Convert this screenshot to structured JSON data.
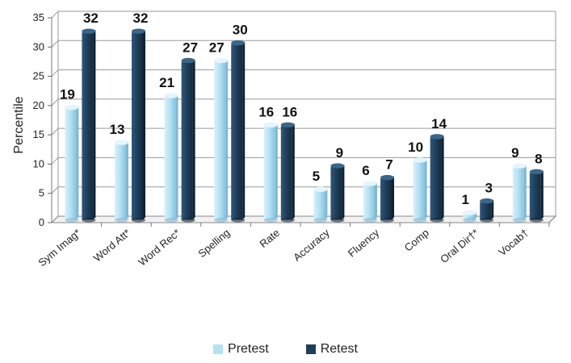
{
  "chart_data": {
    "type": "bar",
    "categories": [
      "Sym Imag*",
      "Word Att*",
      "Word Rec*",
      "Spelling",
      "Rate",
      "Accuracy",
      "Fluency",
      "Comp",
      "Oral Dir†*",
      "Vocab†"
    ],
    "series": [
      {
        "name": "Pretest",
        "values": [
          19,
          13,
          21,
          27,
          16,
          5,
          6,
          10,
          1,
          9
        ]
      },
      {
        "name": "Retest",
        "values": [
          32,
          32,
          27,
          30,
          16,
          9,
          7,
          14,
          3,
          8
        ]
      }
    ],
    "ylabel": "Percentile",
    "ylim": [
      0,
      35
    ],
    "yticks": [
      0,
      5,
      10,
      15,
      20,
      25,
      30,
      35
    ],
    "grid": true,
    "legend": "bottom",
    "colors": {
      "Pretest": "#b4e0f2",
      "Retest": "#1f3e5a"
    }
  }
}
